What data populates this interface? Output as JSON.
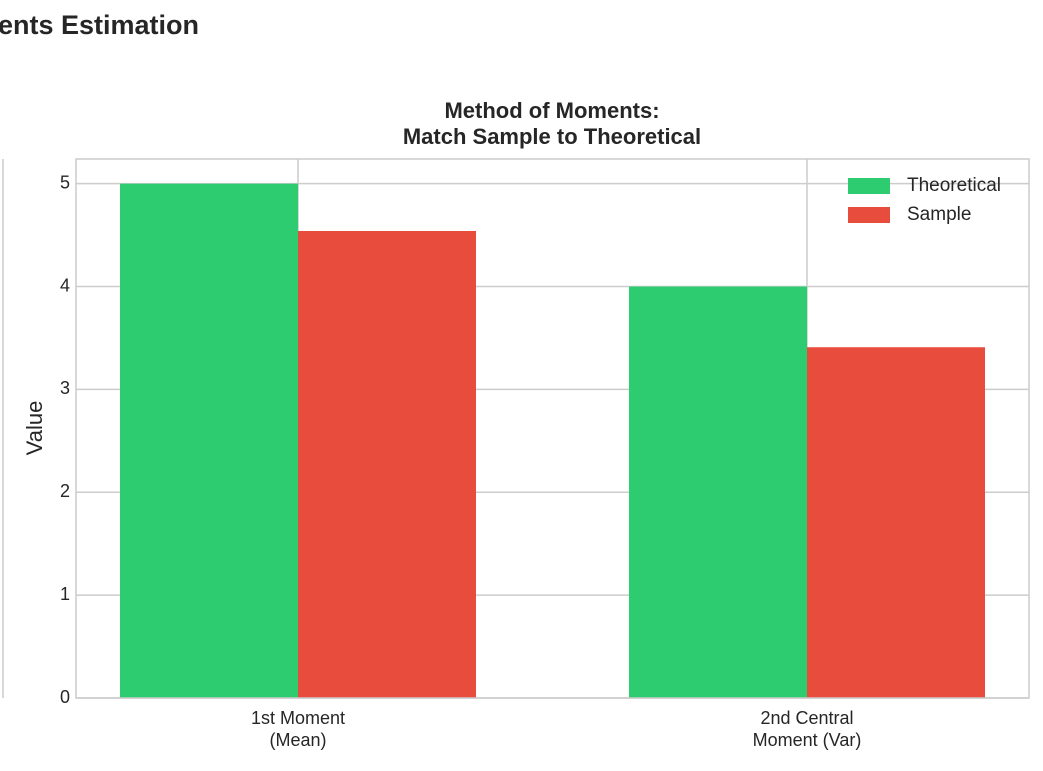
{
  "suptitle": "ents Estimation",
  "chart_data": {
    "type": "bar",
    "title": "Method of Moments:\nMatch Sample to Theoretical",
    "ylabel": "Value",
    "categories": [
      "1st Moment\n(Mean)",
      "2nd Central\nMoment (Var)"
    ],
    "series": [
      {
        "name": "Theoretical",
        "color": "#2ecc71",
        "values": [
          5,
          4
        ]
      },
      {
        "name": "Sample",
        "color": "#e74c3c",
        "values": [
          4.54,
          3.41
        ]
      }
    ],
    "ylim": [
      0,
      5.24
    ],
    "yticks": [
      0,
      1,
      2,
      3,
      4,
      5
    ],
    "grid": true,
    "legend": "upper right"
  }
}
